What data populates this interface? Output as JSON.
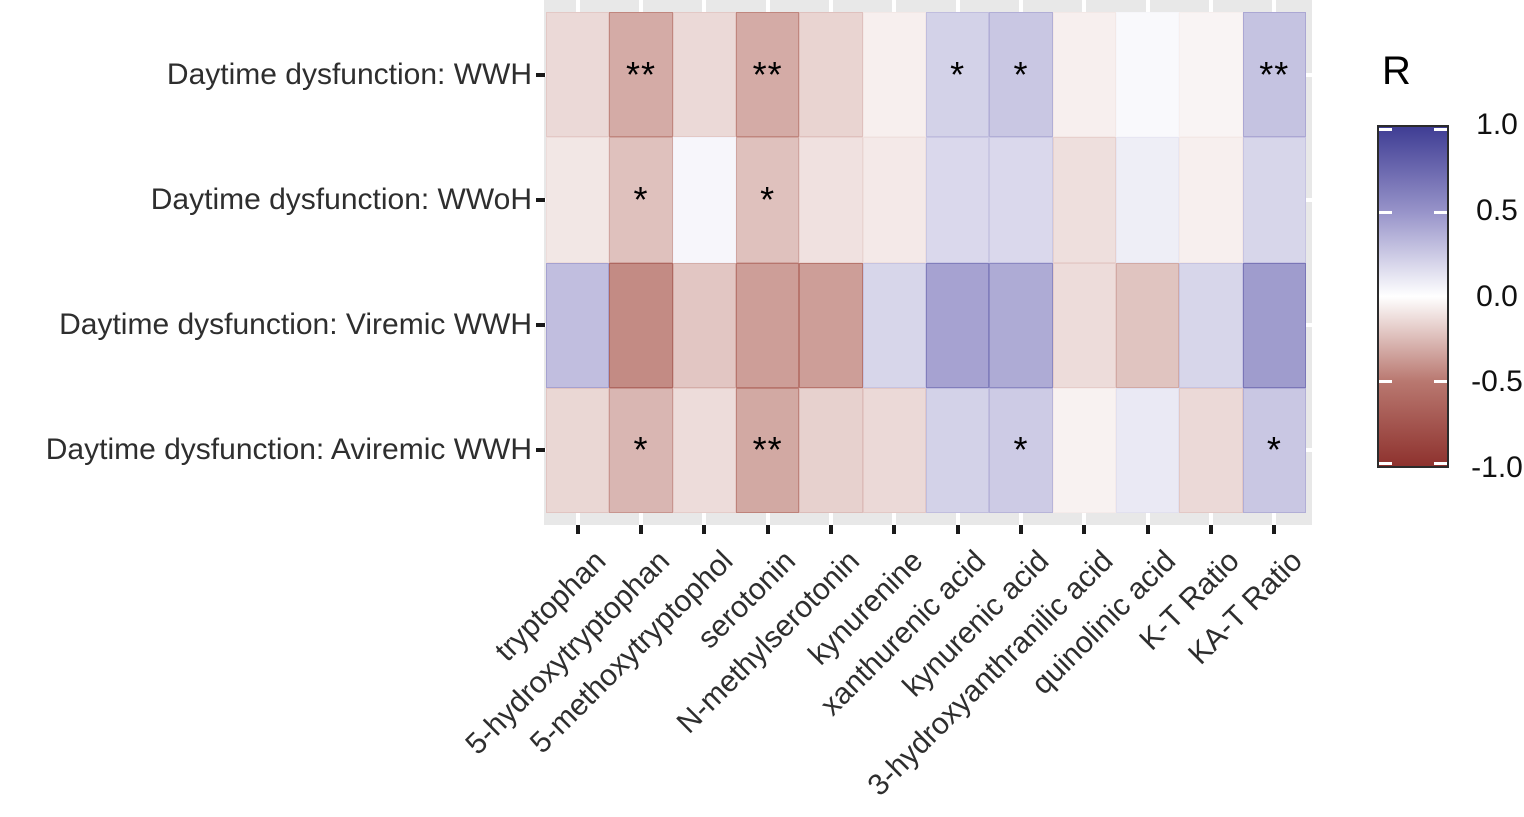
{
  "chart_data": {
    "type": "heatmap",
    "title": "",
    "xlabel": "",
    "ylabel": "",
    "columns": [
      "tryptophan",
      "5-hydroxytryptophan",
      "5-methoxytryptophol",
      "serotonin",
      "N-methylserotonin",
      "kynurenine",
      "xanthurenic acid",
      "kynurenic acid",
      "3-hydroxyanthranilic acid",
      "quinolinic acid",
      "K-T Ratio",
      "KA-T Ratio"
    ],
    "rows": [
      {
        "label": "Daytime dysfunction: WWH",
        "values": [
          -0.14,
          -0.31,
          -0.14,
          -0.31,
          -0.16,
          -0.06,
          0.21,
          0.26,
          -0.06,
          0.03,
          -0.04,
          0.28
        ],
        "significance": [
          "",
          "**",
          "",
          "**",
          "",
          "",
          "*",
          "*",
          "",
          "",
          "",
          "**"
        ]
      },
      {
        "label": "Daytime dysfunction: WWoH",
        "values": [
          -0.09,
          -0.23,
          0.04,
          -0.23,
          -0.11,
          -0.08,
          0.18,
          0.18,
          -0.12,
          0.08,
          -0.06,
          0.19
        ],
        "significance": [
          "",
          "*",
          "",
          "*",
          "",
          "",
          "",
          "",
          "",
          "",
          "",
          ""
        ]
      },
      {
        "label": "Daytime dysfunction: Viremic WWH",
        "values": [
          0.3,
          -0.43,
          -0.21,
          -0.36,
          -0.36,
          0.19,
          0.43,
          0.39,
          -0.13,
          -0.22,
          0.19,
          0.46
        ],
        "significance": [
          "",
          "",
          "",
          "",
          "",
          "",
          "",
          "",
          "",
          "",
          "",
          ""
        ]
      },
      {
        "label": "Daytime dysfunction: Aviremic WWH",
        "values": [
          -0.15,
          -0.27,
          -0.13,
          -0.32,
          -0.17,
          -0.14,
          0.21,
          0.24,
          -0.05,
          0.1,
          -0.14,
          0.26
        ],
        "significance": [
          "",
          "*",
          "",
          "**",
          "",
          "",
          "",
          "*",
          "",
          "",
          "",
          "*"
        ]
      }
    ],
    "legend": {
      "title": "R",
      "position": "right",
      "range": [
        -1.0,
        1.0
      ],
      "tick_values": [
        1.0,
        0.5,
        0.0,
        -0.5,
        -1.0
      ],
      "tick_labels": [
        "1.0",
        "0.5",
        "0.0",
        "-0.5",
        "-1.0"
      ]
    },
    "colormap": {
      "interpolation": "piecewise-linear-rgb",
      "stops": [
        {
          "value": -1.0,
          "color": "#8e322e"
        },
        {
          "value": -0.5,
          "color": "#b97870"
        },
        {
          "value": 0.0,
          "color": "#ffffff"
        },
        {
          "value": 0.5,
          "color": "#9793c9"
        },
        {
          "value": 1.0,
          "color": "#3f3d94"
        }
      ]
    },
    "grid": true
  },
  "panel": {
    "background": "#e8e8e8",
    "gridline_color": "#ffffff",
    "tick_color": "#1a1a1a",
    "axis_text_color": "#2e2e2e",
    "annotation_color": "#000000",
    "page_background": "#ffffff",
    "legend_frame_color": "#2b2b2b"
  }
}
